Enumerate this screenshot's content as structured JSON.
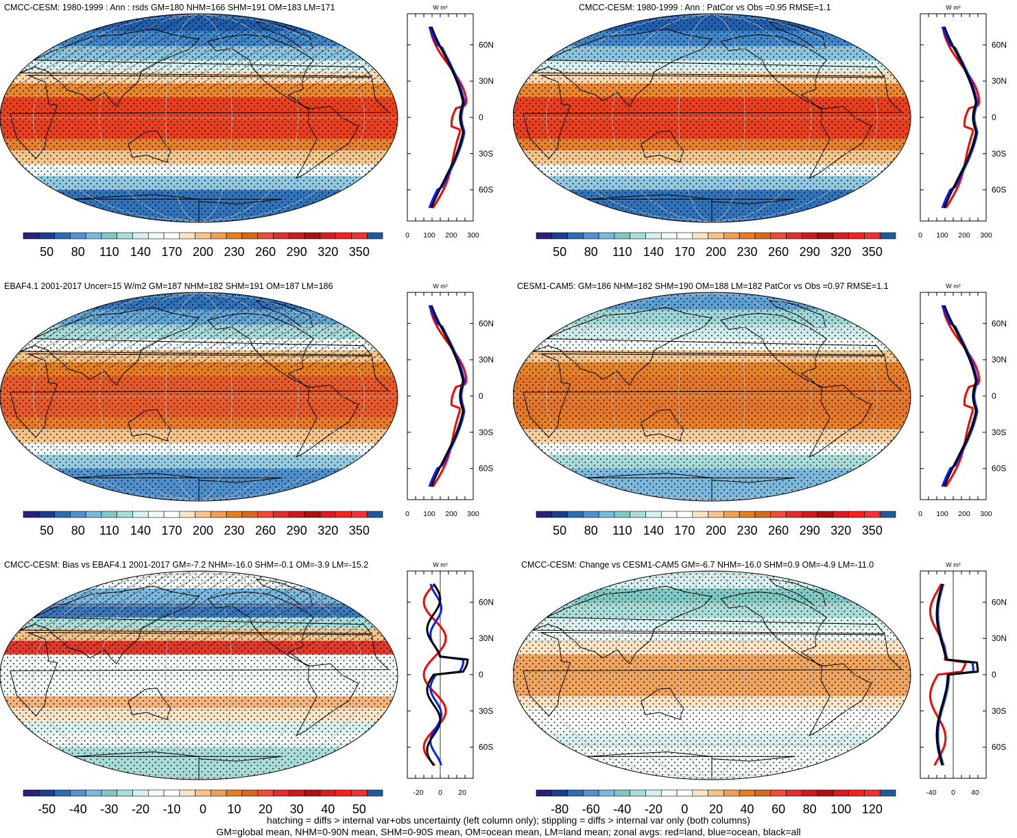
{
  "panels": [
    {
      "id": "p1",
      "title": "CMCC-CESM: 1980-1999 : Ann : rsds GM=180 NHM=166 SHM=191 OM=183 LM=171",
      "colorbar_labels": [
        "50",
        "80",
        "110",
        "140",
        "170",
        "200",
        "230",
        "260",
        "290",
        "320",
        "350"
      ],
      "profile_unit": "W m²",
      "profile_lat_labels": [
        "60N",
        "30N",
        "0",
        "30S",
        "60S"
      ],
      "profile_x_labels": [
        "0",
        "100",
        "200",
        "300"
      ]
    },
    {
      "id": "p2",
      "title": "CMCC-CESM: 1980-1999 : Ann : PatCor vs Obs =0.95 RMSE=1.1",
      "colorbar_labels": [
        "50",
        "80",
        "110",
        "140",
        "170",
        "200",
        "230",
        "260",
        "290",
        "320",
        "350"
      ],
      "profile_unit": "W m²",
      "profile_lat_labels": [
        "60N",
        "30N",
        "0",
        "30S",
        "60S"
      ],
      "profile_x_labels": [
        "0",
        "100",
        "200",
        "300"
      ]
    },
    {
      "id": "p3",
      "title": "EBAF4.1 2001-2017 Uncer=15 W/m2 GM=187 NHM=182 SHM=191 OM=187 LM=186",
      "colorbar_labels": [
        "50",
        "80",
        "110",
        "140",
        "170",
        "200",
        "230",
        "260",
        "290",
        "320",
        "350"
      ],
      "profile_unit": "W m²",
      "profile_lat_labels": [
        "60N",
        "30N",
        "0",
        "30S",
        "60S"
      ],
      "profile_x_labels": [
        "0",
        "100",
        "200",
        "300"
      ]
    },
    {
      "id": "p4",
      "title": "CESM1-CAM5: GM=186 NHM=182 SHM=190 OM=188 LM=182 PatCor vs Obs =0.97 RMSE=1.1",
      "colorbar_labels": [
        "50",
        "80",
        "110",
        "140",
        "170",
        "200",
        "230",
        "260",
        "290",
        "320",
        "350"
      ],
      "profile_unit": "W m²",
      "profile_lat_labels": [
        "60N",
        "30N",
        "0",
        "30S",
        "60S"
      ],
      "profile_x_labels": [
        "0",
        "100",
        "200",
        "300"
      ]
    },
    {
      "id": "p5",
      "title": "CMCC-CESM: Bias vs EBAF4.1 2001-2017 GM=-7.2 NHM=-16.0 SHM=-0.1 OM=-3.9 LM=-15.2",
      "colorbar_labels": [
        "-50",
        "-40",
        "-30",
        "-20",
        "-10",
        "0",
        "10",
        "20",
        "30",
        "40",
        "50"
      ],
      "profile_unit": "W m²",
      "profile_lat_labels": [
        "60N",
        "30N",
        "0",
        "30S",
        "60S"
      ],
      "profile_x_labels": [
        "-20",
        "0",
        "20"
      ]
    },
    {
      "id": "p6",
      "title": "CMCC-CESM: Change vs CESM1-CAM5 GM=-6.7 NHM=-16.0 SHM=0.9 OM=-4.9 LM=-11.0",
      "colorbar_labels": [
        "-80",
        "-60",
        "-40",
        "-20",
        "0",
        "20",
        "40",
        "60",
        "80",
        "100",
        "120"
      ],
      "profile_unit": "W m²",
      "profile_lat_labels": [
        "60N",
        "30N",
        "0",
        "30S",
        "60S"
      ],
      "profile_x_labels": [
        "-40",
        "0",
        "40"
      ]
    }
  ],
  "colorbar_colors": [
    "#2a1f7a",
    "#1a3f92",
    "#2d6cb4",
    "#4f93cf",
    "#7ab8de",
    "#7fc9c4",
    "#a9ddd9",
    "#d8f1f0",
    "#f2f9f7",
    "#ffffff",
    "#fbe4c6",
    "#f6c489",
    "#eea055",
    "#e57e1e",
    "#d9681a",
    "#f14a3a",
    "#e52b2d",
    "#cd1a1f",
    "#b30d14",
    "#d81a22",
    "#ff1f1f",
    "#f03236",
    "#1f5b9a"
  ],
  "footer": {
    "line1": "hatching = diffs > internal var+obs uncertainty (left column only); stippling = diffs > internal var only (both columns)",
    "line2": "GM=global mean, NHM=0-90N mean, SHM=0-90S mean, OM=ocean mean, LM=land mean; zonal avgs: red=land, blue=ocean, black=all"
  },
  "zonal_colors": {
    "land": "#ff0000",
    "ocean": "#0020ff",
    "all": "#000000"
  }
}
